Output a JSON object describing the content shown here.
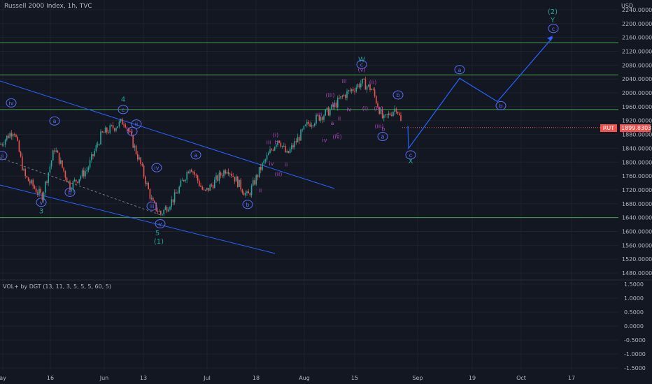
{
  "header": {
    "title": "Russell 2000 Index, 1h, TVC",
    "currency": "USD"
  },
  "indicator": {
    "title": "VOL+ by DGT (13, 11, 3, 5, 5, 5, 60, 5)"
  },
  "last_price": {
    "symbol": "RUT",
    "value": "1899.8303"
  },
  "colors": {
    "background": "#131722",
    "up": "#26a69a",
    "down": "#ef5350",
    "trend": "#2962ff",
    "level": "#4caf50",
    "wave_primary": "#5b6ef5",
    "wave_minor": "#ab47bc",
    "wave_major": "#26a69a"
  },
  "chart_data": {
    "type": "candlestick",
    "y_axis": {
      "ticks": [
        "2240.0000",
        "2200.0000",
        "2160.0000",
        "2120.0000",
        "2080.0000",
        "2040.0000",
        "2000.0000",
        "1960.0000",
        "1920.0000",
        "1880.0000",
        "1840.0000",
        "1800.0000",
        "1760.0000",
        "1720.0000",
        "1680.0000",
        "1640.0000",
        "1600.0000",
        "1560.0000",
        "1520.0000",
        "1480.0000"
      ],
      "range": [
        1450,
        2255
      ]
    },
    "vol_axis": {
      "ticks": [
        "1.5000",
        "1.0000",
        "0.5000",
        "0.0000",
        "-0.5000",
        "-1.0000",
        "-1.5000"
      ],
      "range": [
        -1.7,
        1.7
      ]
    },
    "x_axis": {
      "ticks": [
        "ay",
        "16",
        "Jun",
        "13",
        "Jul",
        "18",
        "Aug",
        "15",
        "Sep",
        "19",
        "Oct",
        "17"
      ]
    },
    "horizontal_levels": [
      2145,
      2052,
      1952,
      1640
    ],
    "waves": [
      {
        "label": "iv",
        "circled": true,
        "level": "primary",
        "x": 16,
        "y": 1965
      },
      {
        "label": "ii",
        "circled": true,
        "level": "primary",
        "x": 3,
        "y": 1813
      },
      {
        "label": "a",
        "circled": true,
        "level": "primary",
        "x": 78,
        "y": 1913
      },
      {
        "label": "b",
        "circled": true,
        "level": "primary",
        "x": 100,
        "y": 1707
      },
      {
        "label": "v",
        "circled": true,
        "level": "primary",
        "x": 59,
        "y": 1678
      },
      {
        "label": "3",
        "circled": false,
        "level": "major",
        "x": 59,
        "y": 1652
      },
      {
        "label": "4",
        "circled": false,
        "level": "major",
        "x": 176,
        "y": 1975
      },
      {
        "label": "c",
        "circled": true,
        "level": "primary",
        "x": 176,
        "y": 1946
      },
      {
        "label": "ii",
        "circled": true,
        "level": "primary",
        "x": 195,
        "y": 1904
      },
      {
        "label": "i",
        "circled": true,
        "level": "primary",
        "x": 189,
        "y": 1883
      },
      {
        "label": "iv",
        "circled": true,
        "level": "primary",
        "x": 224,
        "y": 1778
      },
      {
        "label": "iii",
        "circled": true,
        "level": "primary",
        "x": 217,
        "y": 1667
      },
      {
        "label": "v",
        "circled": true,
        "level": "primary",
        "x": 229,
        "y": 1616
      },
      {
        "label": "5",
        "circled": false,
        "level": "major",
        "x": 225,
        "y": 1589
      },
      {
        "label": "(1)",
        "circled": false,
        "level": "major",
        "x": 227,
        "y": 1565
      },
      {
        "label": "a",
        "circled": true,
        "level": "primary",
        "x": 280,
        "y": 1815
      },
      {
        "label": "b",
        "circled": true,
        "level": "primary",
        "x": 354,
        "y": 1672
      },
      {
        "label": "ii",
        "circled": false,
        "level": "minor",
        "x": 372,
        "y": 1713
      },
      {
        "label": "(i)",
        "circled": false,
        "level": "minor",
        "x": 394,
        "y": 1873
      },
      {
        "label": "iii",
        "circled": false,
        "level": "minor",
        "x": 384,
        "y": 1852
      },
      {
        "label": "b",
        "circled": false,
        "level": "minor",
        "x": 395,
        "y": 1852
      },
      {
        "label": "iv",
        "circled": false,
        "level": "minor",
        "x": 388,
        "y": 1790
      },
      {
        "label": "ii",
        "circled": false,
        "level": "minor",
        "x": 409,
        "y": 1787
      },
      {
        "label": "(ii)",
        "circled": false,
        "level": "minor",
        "x": 398,
        "y": 1760
      },
      {
        "label": "iii",
        "circled": false,
        "level": "minor",
        "x": 457,
        "y": 1933
      },
      {
        "label": "(iii)",
        "circled": false,
        "level": "minor",
        "x": 472,
        "y": 1988
      },
      {
        "label": "b",
        "circled": false,
        "level": "minor",
        "x": 477,
        "y": 1962
      },
      {
        "label": "a",
        "circled": false,
        "level": "minor",
        "x": 475,
        "y": 1907
      },
      {
        "label": "ii",
        "circled": false,
        "level": "minor",
        "x": 485,
        "y": 1920
      },
      {
        "label": "iv",
        "circled": false,
        "level": "minor",
        "x": 464,
        "y": 1858
      },
      {
        "label": "c",
        "circled": false,
        "level": "minor",
        "x": 483,
        "y": 1875
      },
      {
        "label": "(iv)",
        "circled": false,
        "level": "minor",
        "x": 482,
        "y": 1868
      },
      {
        "label": "iii",
        "circled": false,
        "level": "minor",
        "x": 492,
        "y": 2028
      },
      {
        "label": "iv",
        "circled": false,
        "level": "minor",
        "x": 499,
        "y": 1947
      },
      {
        "label": "W",
        "circled": false,
        "level": "major",
        "x": 517,
        "y": 2090
      },
      {
        "label": "c",
        "circled": true,
        "level": "primary",
        "x": 517,
        "y": 2076
      },
      {
        "label": "(v)",
        "circled": false,
        "level": "minor",
        "x": 517,
        "y": 2062
      },
      {
        "label": "(ii)",
        "circled": false,
        "level": "minor",
        "x": 533,
        "y": 2025
      },
      {
        "label": "(i)",
        "circled": false,
        "level": "minor",
        "x": 522,
        "y": 1950
      },
      {
        "label": "(iv)",
        "circled": false,
        "level": "minor",
        "x": 541,
        "y": 1950
      },
      {
        "label": "(iii)",
        "circled": false,
        "level": "minor",
        "x": 542,
        "y": 1898
      },
      {
        "label": "b",
        "circled": false,
        "level": "minor",
        "x": 548,
        "y": 1890
      },
      {
        "label": "a",
        "circled": true,
        "level": "primary",
        "x": 547,
        "y": 1868
      },
      {
        "label": "b",
        "circled": true,
        "level": "primary",
        "x": 569,
        "y": 1988
      },
      {
        "label": "c",
        "circled": true,
        "level": "primary",
        "x": 587,
        "y": 1815
      },
      {
        "label": "X",
        "circled": false,
        "level": "major",
        "x": 587,
        "y": 1797
      },
      {
        "label": "a",
        "circled": true,
        "level": "primary",
        "x": 657,
        "y": 2061
      },
      {
        "label": "b",
        "circled": true,
        "level": "primary",
        "x": 716,
        "y": 1957
      },
      {
        "label": "c",
        "circled": true,
        "level": "primary",
        "x": 791,
        "y": 2180
      },
      {
        "label": "Y",
        "circled": false,
        "level": "major",
        "x": 790,
        "y": 2204
      },
      {
        "label": "(2)",
        "circled": false,
        "level": "major",
        "x": 790,
        "y": 2228
      }
    ]
  }
}
